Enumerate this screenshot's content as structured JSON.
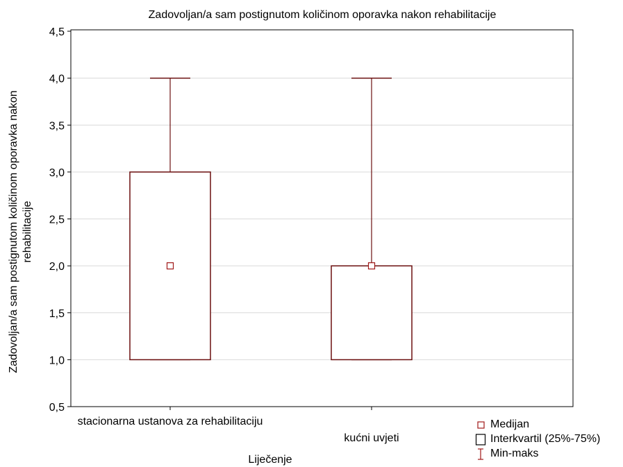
{
  "chart_data": {
    "type": "box",
    "title": "Zadovoljan/a sam postignutom količinom oporavka nakon rehabilitacije",
    "ylabel_lines": [
      "Zadovoljan/a sam postignutom količinom oporavka nakon",
      "rehabilitacije"
    ],
    "xlabel": "Liječenje",
    "ylim": [
      0.5,
      4.5
    ],
    "yticks": [
      "0,5",
      "1,0",
      "1,5",
      "2,0",
      "2,5",
      "3,0",
      "3,5",
      "4,0",
      "4,5"
    ],
    "grid": "horizontal",
    "categories": [
      "stacionarna ustanova za rehabilitaciju",
      "kućni uvjeti"
    ],
    "boxes": [
      {
        "min": 1.0,
        "q1": 1.0,
        "median": 2.0,
        "q3": 3.0,
        "max": 4.0
      },
      {
        "min": 1.0,
        "q1": 1.0,
        "median": 2.0,
        "q3": 2.0,
        "max": 4.0
      }
    ],
    "legend": {
      "placement": "bottom-right",
      "entries": [
        "Medijan",
        "Interkvartil (25%-75%)",
        "Min-maks"
      ]
    },
    "colors": {
      "box": "#6b0f0f",
      "median": "#a01818",
      "grid": "#d9d9d9",
      "axis": "#000000"
    }
  }
}
